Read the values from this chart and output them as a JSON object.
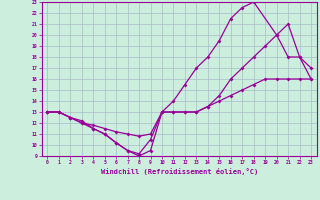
{
  "xlabel": "Windchill (Refroidissement éolien,°C)",
  "bg_color": "#cceedd",
  "grid_color": "#aabbcc",
  "line_color": "#990099",
  "xlim": [
    -0.5,
    23.5
  ],
  "ylim": [
    9,
    23
  ],
  "xticks": [
    0,
    1,
    2,
    3,
    4,
    5,
    6,
    7,
    8,
    9,
    10,
    11,
    12,
    13,
    14,
    15,
    16,
    17,
    18,
    19,
    20,
    21,
    22,
    23
  ],
  "yticks": [
    9,
    10,
    11,
    12,
    13,
    14,
    15,
    16,
    17,
    18,
    19,
    20,
    21,
    22,
    23
  ],
  "line1_x": [
    0,
    1,
    2,
    3,
    4,
    5,
    6,
    7,
    8,
    9,
    10,
    11,
    12,
    13,
    14,
    15,
    16,
    17,
    18,
    19,
    20,
    21,
    22,
    23
  ],
  "line1_y": [
    13,
    13,
    12.5,
    12.2,
    11.5,
    11.0,
    10.2,
    9.5,
    9.0,
    9.5,
    13,
    13,
    13,
    13,
    13.5,
    14,
    14.5,
    15,
    15.5,
    16,
    16,
    16,
    16,
    16
  ],
  "line2_x": [
    0,
    1,
    2,
    3,
    4,
    5,
    6,
    7,
    8,
    9,
    10,
    11,
    12,
    13,
    14,
    15,
    16,
    17,
    18,
    20,
    21,
    22,
    23
  ],
  "line2_y": [
    13,
    13,
    12.5,
    12,
    11.8,
    11.5,
    11.2,
    11.0,
    10.8,
    11.0,
    13,
    14,
    15.5,
    17,
    18,
    19.5,
    21.5,
    22.5,
    23,
    20,
    18,
    18,
    17
  ],
  "line3_x": [
    0,
    1,
    2,
    3,
    4,
    5,
    6,
    7,
    8,
    9,
    10,
    11,
    12,
    13,
    14,
    15,
    16,
    17,
    18,
    19,
    20,
    21,
    22,
    23
  ],
  "line3_y": [
    13,
    13,
    12.5,
    12,
    11.5,
    11,
    10.2,
    9.5,
    9.2,
    10.5,
    13,
    13,
    13,
    13,
    13.5,
    14.5,
    16,
    17,
    18,
    19,
    20,
    21,
    18,
    16
  ]
}
